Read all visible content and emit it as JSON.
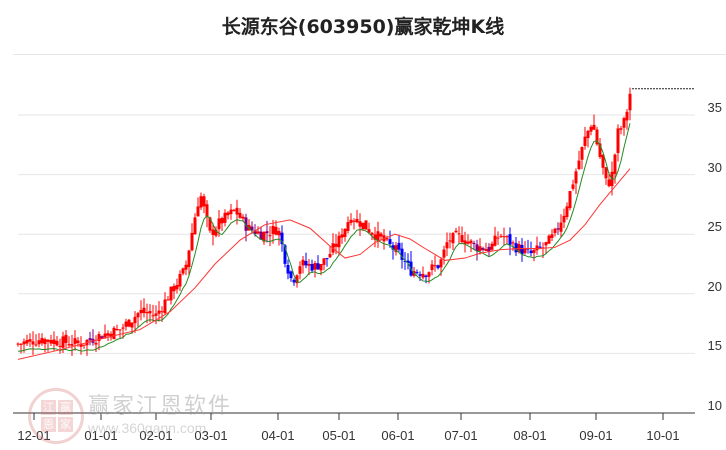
{
  "header": {
    "title": "长源东谷(603950)赢家乾坤K线"
  },
  "watermark": {
    "brand": "赢家江恩软件",
    "url": "www.360gann.com",
    "seal": [
      "江",
      "赢",
      "恩",
      "家"
    ]
  },
  "colors": {
    "up": "#ff0000",
    "down": "#0000ff",
    "special": "#800080",
    "ma_short": "#228b22",
    "ma_long": "#ff3333",
    "grid": "#e6e6e6",
    "axis": "#333333"
  },
  "chart_data": {
    "type": "candlestick",
    "title": "长源东谷(603950)赢家乾坤K线",
    "xlabel": "",
    "ylabel": "",
    "ylim": [
      10,
      37.5
    ],
    "y_ticks": [
      10,
      15,
      20,
      25,
      30,
      35
    ],
    "x_ticks": [
      "12-01",
      "01-01",
      "02-01",
      "03-01",
      "04-01",
      "05-01",
      "06-01",
      "07-01",
      "08-01",
      "09-01",
      "10-01"
    ],
    "grid": true,
    "approx_close_by_period": [
      {
        "date": "12-01",
        "close": 15.8
      },
      {
        "date": "12-15",
        "close": 16.2
      },
      {
        "date": "01-01",
        "close": 15.8
      },
      {
        "date": "01-15",
        "close": 16.8
      },
      {
        "date": "02-01",
        "close": 18.0
      },
      {
        "date": "02-15",
        "close": 21.5
      },
      {
        "date": "03-01",
        "close": 27.5
      },
      {
        "date": "03-15",
        "close": 25.5
      },
      {
        "date": "04-01",
        "close": 25.5
      },
      {
        "date": "04-10",
        "close": 21.0
      },
      {
        "date": "04-20",
        "close": 22.5
      },
      {
        "date": "05-01",
        "close": 25.0
      },
      {
        "date": "05-15",
        "close": 26.5
      },
      {
        "date": "06-01",
        "close": 23.5
      },
      {
        "date": "06-15",
        "close": 22.0
      },
      {
        "date": "07-01",
        "close": 24.5
      },
      {
        "date": "07-15",
        "close": 24.0
      },
      {
        "date": "08-01",
        "close": 23.3
      },
      {
        "date": "08-15",
        "close": 25.0
      },
      {
        "date": "09-01",
        "close": 33.5
      },
      {
        "date": "09-10",
        "close": 29.0
      },
      {
        "date": "09-20",
        "close": 36.8
      }
    ],
    "last_price_line": 37.2,
    "series": [
      {
        "name": "短期均线",
        "color": "#228b22"
      },
      {
        "name": "长期均线",
        "color": "#ff3333"
      }
    ]
  }
}
